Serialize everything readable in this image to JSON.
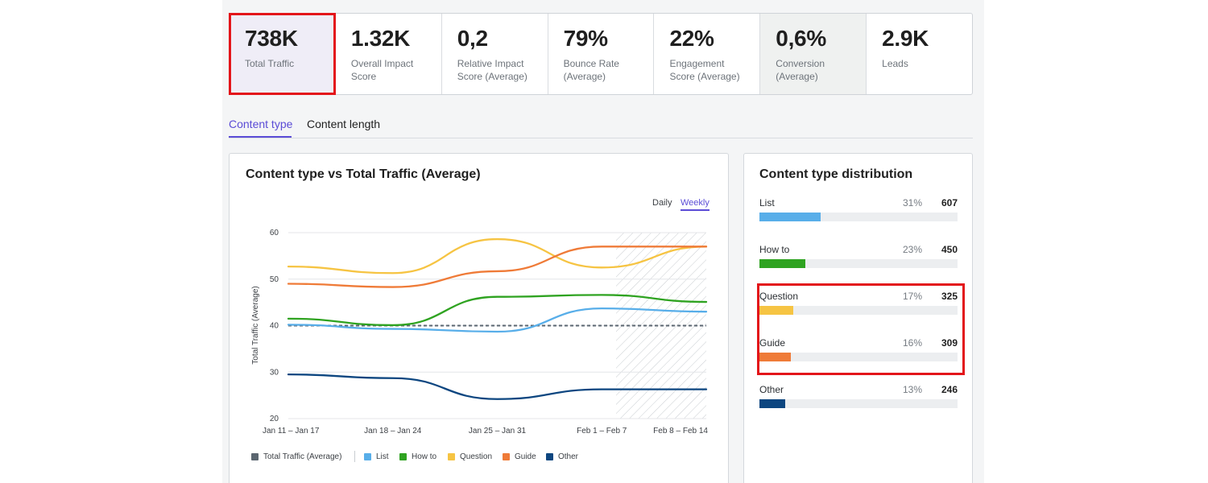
{
  "metrics": [
    {
      "value": "738K",
      "label": "Total Traffic"
    },
    {
      "value": "1.32K",
      "label": "Overall Impact\nScore"
    },
    {
      "value": "0,2",
      "label": "Relative Impact\nScore (Average)"
    },
    {
      "value": "79%",
      "label": "Bounce Rate\n(Average)"
    },
    {
      "value": "22%",
      "label": "Engagement\nScore (Average)"
    },
    {
      "value": "0,6%",
      "label": "Conversion\n(Average)"
    },
    {
      "value": "2.9K",
      "label": "Leads"
    }
  ],
  "tabs": [
    {
      "label": "Content type",
      "active": true
    },
    {
      "label": "Content length",
      "active": false
    }
  ],
  "chart_card": {
    "title": "Content type vs Total Traffic (Average)",
    "toggle_daily": "Daily",
    "toggle_weekly": "Weekly",
    "selected_toggle": "Weekly"
  },
  "chart_data": {
    "type": "line",
    "title": "Content type vs Total Traffic (Average)",
    "xlabel": "",
    "ylabel": "Total Traffic (Average)",
    "categories": [
      "Jan 11 – Jan 17",
      "Jan 18 – Jan 24",
      "Jan 25 – Jan 31",
      "Feb 1 – Feb 7",
      "Feb 8 – Feb 14"
    ],
    "yticks": [
      20,
      30,
      40,
      50,
      60
    ],
    "ylim": [
      20,
      60
    ],
    "grid": true,
    "hatched_last_period": true,
    "reference_line": {
      "name": "Total Traffic (Average)",
      "value": 40,
      "color": "#5b6670",
      "style": "dashed"
    },
    "series": [
      {
        "name": "List",
        "color": "#58aee9",
        "values": [
          40.2,
          39.3,
          38.7,
          43.7,
          43.0
        ]
      },
      {
        "name": "How to",
        "color": "#2fa321",
        "values": [
          41.5,
          40.1,
          46.2,
          46.6,
          45.1
        ]
      },
      {
        "name": "Question",
        "color": "#f6c443",
        "values": [
          52.7,
          51.3,
          58.6,
          52.5,
          57.0
        ]
      },
      {
        "name": "Guide",
        "color": "#ef7b38",
        "values": [
          49.0,
          48.3,
          51.7,
          57.0,
          57.0
        ]
      },
      {
        "name": "Other",
        "color": "#0d4680",
        "values": [
          29.5,
          28.7,
          24.2,
          26.3,
          26.3
        ]
      }
    ]
  },
  "legend": [
    {
      "name": "Total Traffic (Average)",
      "color": "#5b6670"
    },
    {
      "name": "List",
      "color": "#58aee9"
    },
    {
      "name": "How to",
      "color": "#2fa321"
    },
    {
      "name": "Question",
      "color": "#f6c443"
    },
    {
      "name": "Guide",
      "color": "#ef7b38"
    },
    {
      "name": "Other",
      "color": "#0d4680"
    }
  ],
  "distribution": {
    "title": "Content type distribution",
    "rows": [
      {
        "label": "List",
        "pct": "31%",
        "count": "607",
        "fraction": 0.31,
        "color": "#58aee9"
      },
      {
        "label": "How to",
        "pct": "23%",
        "count": "450",
        "fraction": 0.23,
        "color": "#2fa321"
      },
      {
        "label": "Question",
        "pct": "17%",
        "count": "325",
        "fraction": 0.17,
        "color": "#f6c443"
      },
      {
        "label": "Guide",
        "pct": "16%",
        "count": "309",
        "fraction": 0.16,
        "color": "#ef7b38"
      },
      {
        "label": "Other",
        "pct": "13%",
        "count": "246",
        "fraction": 0.13,
        "color": "#0d4680"
      }
    ]
  }
}
